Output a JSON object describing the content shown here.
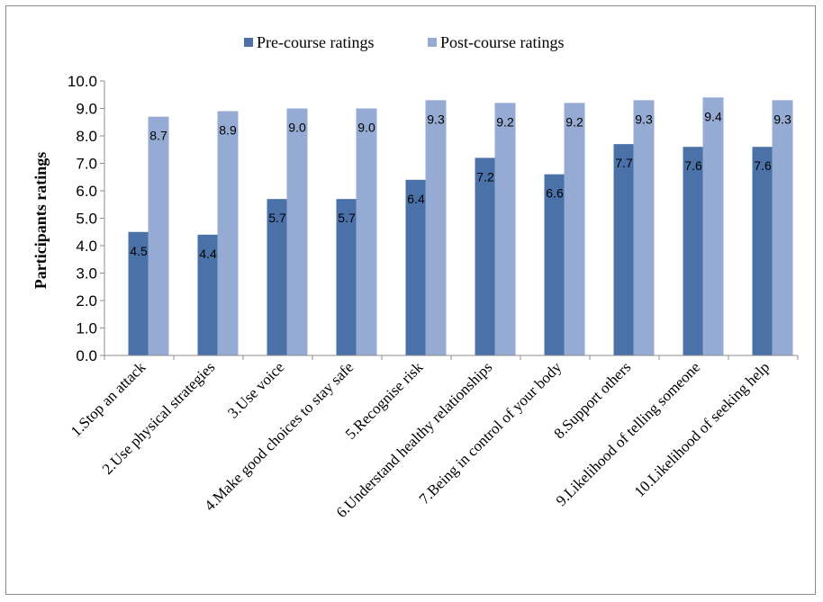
{
  "chart_data": {
    "type": "bar",
    "title": "",
    "xlabel": "",
    "ylabel": "Participants ratings",
    "ylim": [
      0,
      10
    ],
    "yticks": [
      "0.0",
      "1.0",
      "2.0",
      "3.0",
      "4.0",
      "5.0",
      "6.0",
      "7.0",
      "8.0",
      "9.0",
      "10.0"
    ],
    "grid": false,
    "legend_position": "top",
    "categories": [
      "1.Stop an attack",
      "2.Use physical strategies",
      "3.Use voice",
      "4.Make good choices to stay safe",
      "5.Recognise risk",
      "6.Understand healthy relationships",
      "7.Being in control of your body",
      "8.Support others",
      "9.Likelihood of telling someone",
      "10.Likelihood of seeking help"
    ],
    "series": [
      {
        "name": "Pre-course ratings",
        "color": "#4a72a8",
        "values": [
          4.5,
          4.4,
          5.7,
          5.7,
          6.4,
          7.2,
          6.6,
          7.7,
          7.6,
          7.6
        ],
        "labels": [
          "4.5",
          "4.4",
          "5.7",
          "5.7",
          "6.4",
          "7.2",
          "6.6",
          "7.7",
          "7.6",
          "7.6"
        ]
      },
      {
        "name": "Post-course ratings",
        "color": "#95abd4",
        "values": [
          8.7,
          8.9,
          9.0,
          9.0,
          9.3,
          9.2,
          9.2,
          9.3,
          9.4,
          9.3
        ],
        "labels": [
          "8.7",
          "8.9",
          "9.0",
          "9.0",
          "9.3",
          "9.2",
          "9.2",
          "9.3",
          "9.4",
          "9.3"
        ]
      }
    ]
  }
}
